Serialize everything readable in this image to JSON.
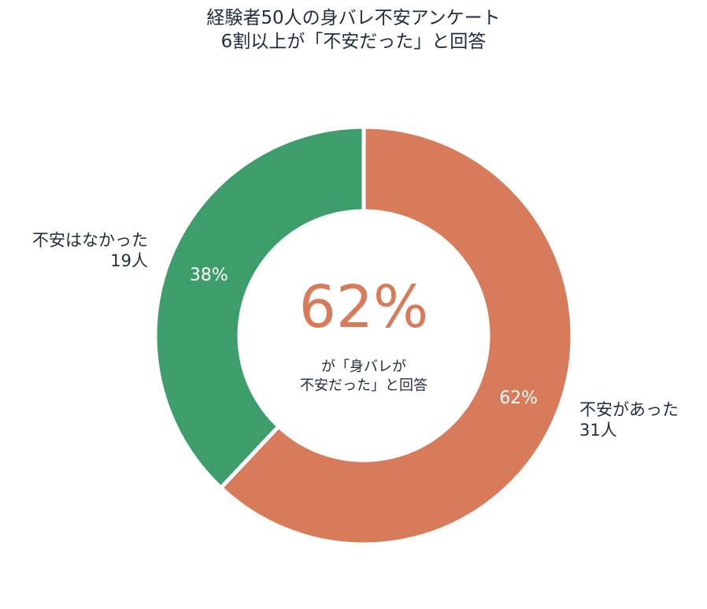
{
  "chart_data": {
    "type": "pie",
    "title_lines": [
      "経験者50人の身バレ不安アンケート",
      "6割以上が「不安だった」と回答"
    ],
    "slices": [
      {
        "label_lines": [
          "不安があった",
          "31人"
        ],
        "value": 31,
        "percent_label": "62%",
        "color": "#d77b5b"
      },
      {
        "label_lines": [
          "不安はなかった",
          "19人"
        ],
        "value": 19,
        "percent_label": "38%",
        "color": "#3d9e6b"
      }
    ],
    "center": {
      "big_text": "62%",
      "big_color": "#d77b5b",
      "sub_lines": [
        "が「身バレが",
        "不安だった」と回答"
      ]
    },
    "grid": false,
    "legend": "none"
  }
}
